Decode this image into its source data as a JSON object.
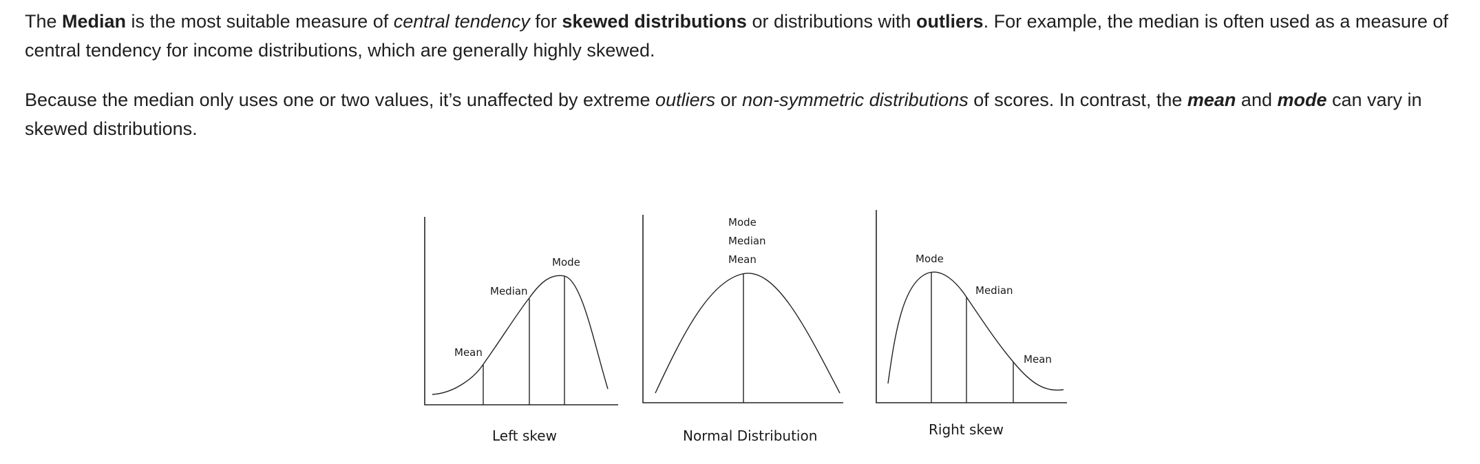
{
  "paragraph1": {
    "t1": "The ",
    "b1": "Median",
    "t2": " is the most suitable measure of ",
    "i1": "central tendency",
    "t3": " for ",
    "b2": "skewed distributions",
    "t4": " or distributions with ",
    "b3": "outliers",
    "t5": ". For example, the median is often used as a measure of central tendency for income distributions, which are generally highly skewed."
  },
  "paragraph2": {
    "t1": "Because the median only uses one or two values, it’s unaffected by extreme ",
    "i1": "outliers",
    "t2": " or ",
    "i2": "non-symmetric distributions",
    "t3": " of scores. In contrast, the ",
    "bi1": "mean",
    "t4": " and ",
    "bi2": "mode",
    "t5": " can vary in skewed distributions."
  },
  "figure": {
    "left_skew": {
      "caption": "Left skew",
      "mean_label": "Mean",
      "median_label": "Median",
      "mode_label": "Mode"
    },
    "normal": {
      "caption": "Normal Distribution",
      "mode_label": "Mode",
      "median_label": "Median",
      "mean_label": "Mean"
    },
    "right_skew": {
      "caption": "Right skew",
      "mode_label": "Mode",
      "median_label": "Median",
      "mean_label": "Mean"
    }
  }
}
